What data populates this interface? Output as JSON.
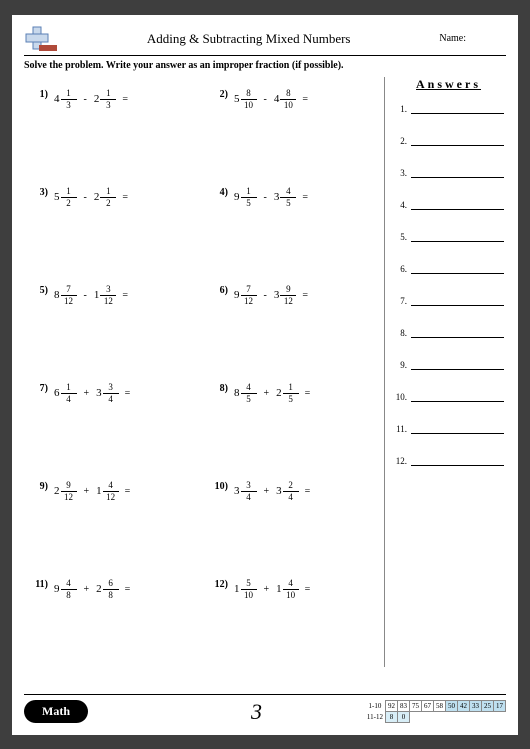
{
  "header": {
    "title": "Adding & Subtracting Mixed Numbers",
    "name_label": "Name:"
  },
  "instruction": "Solve the problem. Write your answer as an improper fraction (if possible).",
  "answers_title": "Answers",
  "page_number": "3",
  "math_label": "Math",
  "problems": [
    {
      "n": "1)",
      "a_w": "4",
      "a_n": "1",
      "a_d": "3",
      "op": "-",
      "b_w": "2",
      "b_n": "1",
      "b_d": "3"
    },
    {
      "n": "2)",
      "a_w": "5",
      "a_n": "8",
      "a_d": "10",
      "op": "-",
      "b_w": "4",
      "b_n": "8",
      "b_d": "10"
    },
    {
      "n": "3)",
      "a_w": "5",
      "a_n": "1",
      "a_d": "2",
      "op": "-",
      "b_w": "2",
      "b_n": "1",
      "b_d": "2"
    },
    {
      "n": "4)",
      "a_w": "9",
      "a_n": "1",
      "a_d": "5",
      "op": "-",
      "b_w": "3",
      "b_n": "4",
      "b_d": "5"
    },
    {
      "n": "5)",
      "a_w": "8",
      "a_n": "7",
      "a_d": "12",
      "op": "-",
      "b_w": "1",
      "b_n": "3",
      "b_d": "12"
    },
    {
      "n": "6)",
      "a_w": "9",
      "a_n": "7",
      "a_d": "12",
      "op": "-",
      "b_w": "3",
      "b_n": "9",
      "b_d": "12"
    },
    {
      "n": "7)",
      "a_w": "6",
      "a_n": "1",
      "a_d": "4",
      "op": "+",
      "b_w": "3",
      "b_n": "3",
      "b_d": "4"
    },
    {
      "n": "8)",
      "a_w": "8",
      "a_n": "4",
      "a_d": "5",
      "op": "+",
      "b_w": "2",
      "b_n": "1",
      "b_d": "5"
    },
    {
      "n": "9)",
      "a_w": "2",
      "a_n": "9",
      "a_d": "12",
      "op": "+",
      "b_w": "1",
      "b_n": "4",
      "b_d": "12"
    },
    {
      "n": "10)",
      "a_w": "3",
      "a_n": "3",
      "a_d": "4",
      "op": "+",
      "b_w": "3",
      "b_n": "2",
      "b_d": "4"
    },
    {
      "n": "11)",
      "a_w": "9",
      "a_n": "4",
      "a_d": "8",
      "op": "+",
      "b_w": "2",
      "b_n": "6",
      "b_d": "8"
    },
    {
      "n": "12)",
      "a_w": "1",
      "a_n": "5",
      "a_d": "10",
      "op": "+",
      "b_w": "1",
      "b_n": "4",
      "b_d": "10"
    }
  ],
  "answer_numbers": [
    "1.",
    "2.",
    "3.",
    "4.",
    "5.",
    "6.",
    "7.",
    "8.",
    "9.",
    "10.",
    "11.",
    "12."
  ],
  "score": {
    "row1_label": "1-10",
    "row2_label": "11-12",
    "row1": [
      "92",
      "83",
      "75",
      "67",
      "58",
      "50",
      "42",
      "33",
      "25",
      "17"
    ],
    "row2": [
      "8",
      "0"
    ],
    "row1_highlight_from": 5,
    "colors": {
      "light": "#d8eef7",
      "dark": "#bfe0f0"
    }
  },
  "logo_colors": {
    "plus_fill": "#c9d9ec",
    "plus_stroke": "#5a7fb5",
    "minus": "#b04a3a"
  }
}
